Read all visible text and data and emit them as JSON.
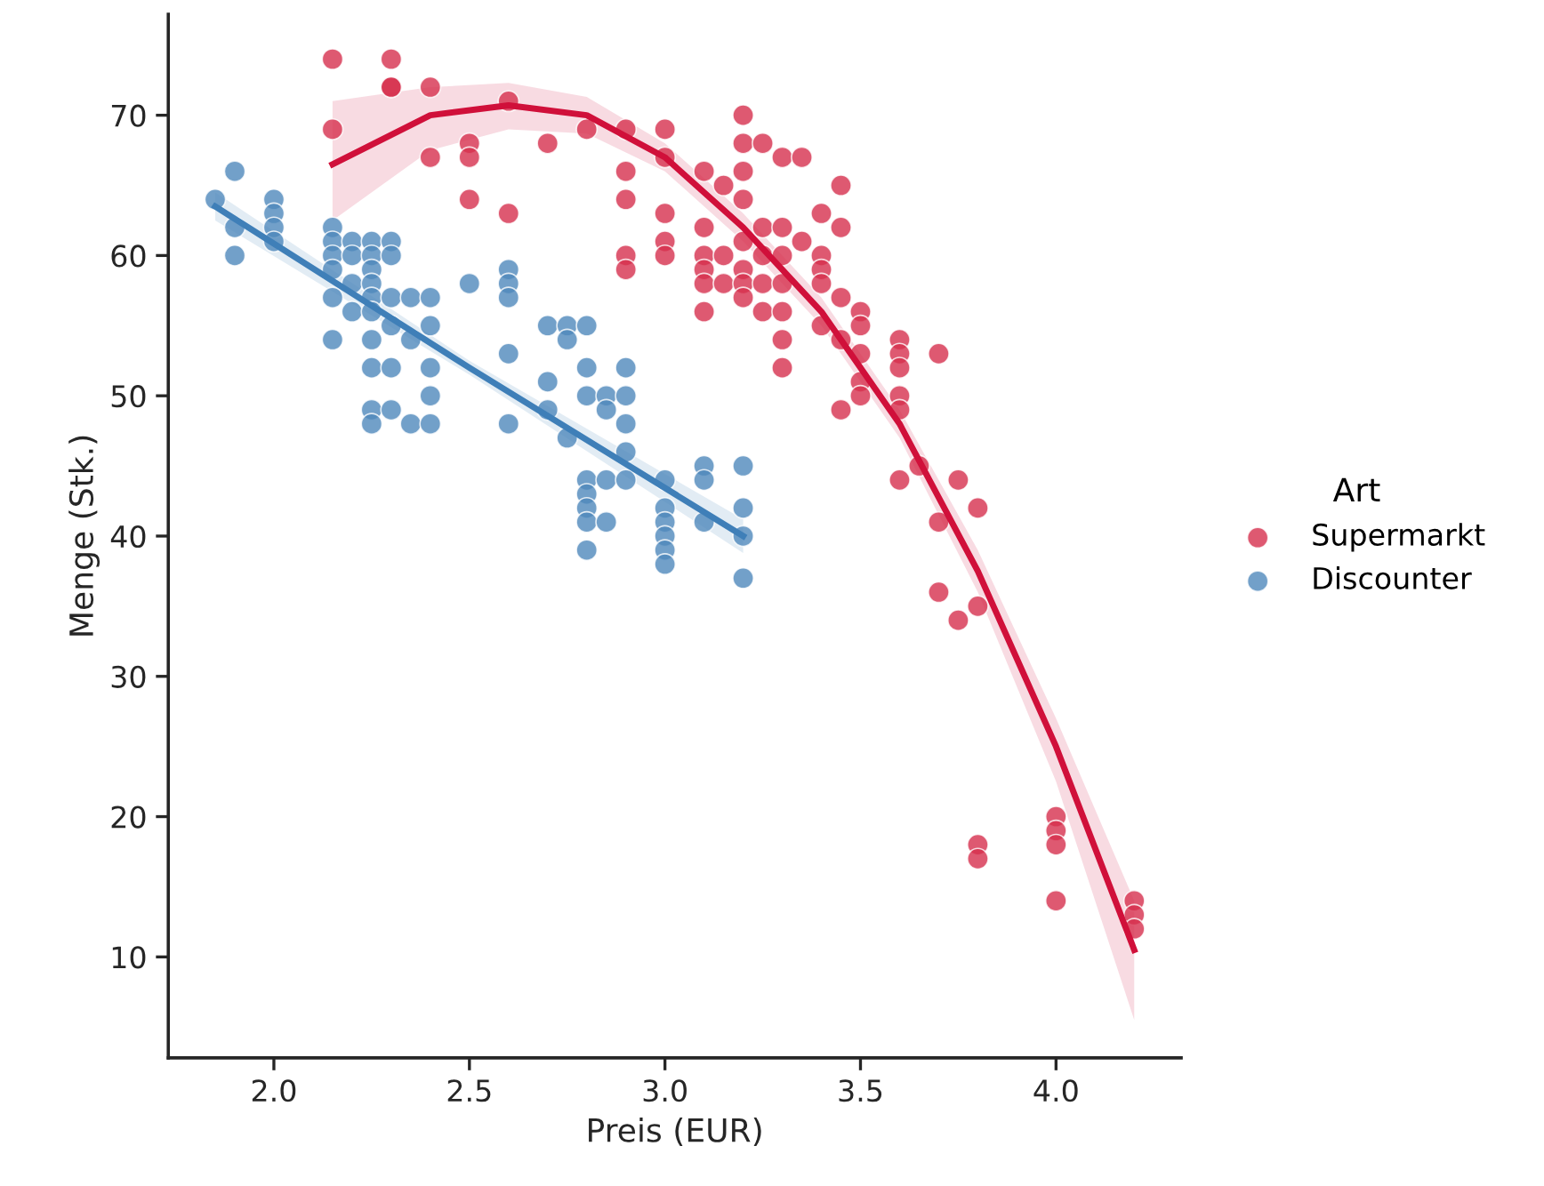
{
  "chart_data": {
    "type": "scatter",
    "xlabel": "Preis (EUR)",
    "ylabel": "Menge (Stk.)",
    "legend_title": "Art",
    "legend": "right",
    "grid": false,
    "xlim": [
      1.73,
      4.32
    ],
    "ylim": [
      2.8,
      77.2
    ],
    "xticks": [
      {
        "value": 2,
        "label": "2.0"
      },
      {
        "value": 2.5,
        "label": "2.5"
      },
      {
        "value": 3,
        "label": "3.0"
      },
      {
        "value": 3.5,
        "label": "3.5"
      },
      {
        "value": 4,
        "label": "4.0"
      }
    ],
    "yticks": [
      10,
      20,
      30,
      40,
      50,
      60,
      70
    ],
    "series": [
      {
        "name": "Supermarkt",
        "marker": "circle",
        "color": "#d6304e",
        "x": [
          2.15,
          2.15,
          2.3,
          2.3,
          2.3,
          2.4,
          2.4,
          2.5,
          2.5,
          2.5,
          2.6,
          2.6,
          2.7,
          2.8,
          2.9,
          2.9,
          2.9,
          2.9,
          2.9,
          3.0,
          3.0,
          3.0,
          3.0,
          3.0,
          3.1,
          3.1,
          3.1,
          3.1,
          3.1,
          3.1,
          3.15,
          3.15,
          3.15,
          3.2,
          3.2,
          3.2,
          3.2,
          3.2,
          3.2,
          3.2,
          3.2,
          3.25,
          3.25,
          3.25,
          3.25,
          3.25,
          3.3,
          3.3,
          3.3,
          3.3,
          3.3,
          3.3,
          3.3,
          3.35,
          3.35,
          3.4,
          3.4,
          3.4,
          3.4,
          3.4,
          3.45,
          3.45,
          3.45,
          3.45,
          3.45,
          3.5,
          3.5,
          3.5,
          3.5,
          3.5,
          3.6,
          3.6,
          3.6,
          3.6,
          3.6,
          3.6,
          3.65,
          3.7,
          3.7,
          3.7,
          3.75,
          3.75,
          3.8,
          3.8,
          3.8,
          3.8,
          4.0,
          4.0,
          4.0,
          4.0,
          4.2,
          4.2,
          4.2
        ],
        "values": [
          74,
          69,
          74,
          72,
          72,
          72,
          67,
          68,
          67,
          64,
          71,
          63,
          68,
          69,
          69,
          66,
          64,
          60,
          59,
          69,
          67,
          63,
          61,
          60,
          66,
          62,
          60,
          59,
          58,
          56,
          65,
          60,
          58,
          70,
          68,
          66,
          64,
          61,
          59,
          58,
          57,
          68,
          62,
          60,
          58,
          56,
          67,
          62,
          60,
          58,
          56,
          54,
          52,
          67,
          61,
          63,
          60,
          59,
          58,
          55,
          65,
          62,
          57,
          54,
          49,
          56,
          55,
          53,
          51,
          50,
          54,
          53,
          52,
          50,
          49,
          44,
          45,
          53,
          41,
          36,
          44,
          34,
          42,
          35,
          18,
          17,
          20,
          19,
          18,
          14,
          14,
          13,
          12
        ]
      },
      {
        "name": "Discounter",
        "marker": "circle",
        "color": "#4f88bb",
        "x": [
          1.85,
          1.9,
          1.9,
          1.9,
          2.0,
          2.0,
          2.0,
          2.0,
          2.15,
          2.15,
          2.15,
          2.15,
          2.15,
          2.15,
          2.2,
          2.2,
          2.2,
          2.2,
          2.25,
          2.25,
          2.25,
          2.25,
          2.25,
          2.25,
          2.25,
          2.25,
          2.25,
          2.25,
          2.3,
          2.3,
          2.3,
          2.3,
          2.3,
          2.3,
          2.35,
          2.35,
          2.35,
          2.4,
          2.4,
          2.4,
          2.4,
          2.4,
          2.5,
          2.6,
          2.6,
          2.6,
          2.6,
          2.6,
          2.7,
          2.7,
          2.7,
          2.75,
          2.75,
          2.75,
          2.8,
          2.8,
          2.8,
          2.8,
          2.8,
          2.8,
          2.8,
          2.8,
          2.85,
          2.85,
          2.85,
          2.85,
          2.9,
          2.9,
          2.9,
          2.9,
          2.9,
          3.0,
          3.0,
          3.0,
          3.0,
          3.0,
          3.0,
          3.1,
          3.1,
          3.1,
          3.2,
          3.2,
          3.2,
          3.2
        ],
        "values": [
          64,
          66,
          62,
          60,
          64,
          63,
          62,
          61,
          62,
          61,
          60,
          59,
          57,
          54,
          61,
          60,
          58,
          56,
          61,
          60,
          59,
          58,
          57,
          56,
          54,
          52,
          49,
          48,
          61,
          60,
          57,
          55,
          52,
          49,
          57,
          54,
          48,
          57,
          55,
          52,
          50,
          48,
          58,
          59,
          58,
          57,
          53,
          48,
          55,
          51,
          49,
          55,
          54,
          47,
          55,
          52,
          50,
          44,
          43,
          42,
          41,
          39,
          50,
          49,
          44,
          41,
          52,
          50,
          48,
          46,
          44,
          44,
          42,
          41,
          40,
          39,
          38,
          45,
          44,
          41,
          45,
          42,
          40,
          37
        ]
      },
      {
        "type": "line",
        "color": "#d0103a",
        "x": [
          2.15,
          2.4,
          2.6,
          2.8,
          3.0,
          3.2,
          3.4,
          3.6,
          3.8,
          4.0,
          4.2
        ],
        "values": [
          66.5,
          70,
          70.7,
          70,
          67,
          62,
          56,
          48,
          37.5,
          25,
          10.5
        ],
        "lower": [
          62.5,
          67.5,
          69,
          68.7,
          66,
          61,
          55,
          47,
          36,
          22.5,
          5.5
        ],
        "upper": [
          71,
          72,
          72.3,
          71.3,
          68,
          63,
          57,
          49,
          39,
          27,
          14
        ]
      },
      {
        "type": "line",
        "color": "#3f7fb8",
        "x": [
          1.85,
          2.5,
          3.2
        ],
        "values": [
          63.5,
          52,
          40
        ],
        "lower": [
          62.5,
          51.5,
          38.8
        ],
        "upper": [
          64.5,
          52.5,
          41.2
        ]
      }
    ]
  }
}
